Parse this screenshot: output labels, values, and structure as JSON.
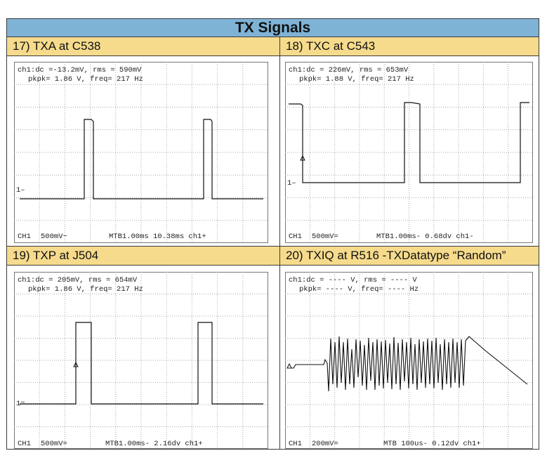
{
  "page": {
    "title": "TX Signals"
  },
  "panels": [
    {
      "heading": "17) TXA at C538",
      "readout_line1": "ch1:dc  =-13.2mV, rms =  590mV",
      "readout_line2": "pkpk= 1.86 V, freq=  217 Hz",
      "marker": "1–",
      "footer_channel": "CH1",
      "footer_scale": "500mV~",
      "footer_timebase": "MTB1.00ms 10.38ms ch1+"
    },
    {
      "heading": "18) TXC at C543",
      "readout_line1": "ch1:dc  =  226mV, rms =  653mV",
      "readout_line2": "pkpk= 1.88 V, freq=  217 Hz",
      "marker": "1–",
      "footer_channel": "CH1",
      "footer_scale": "500mV=",
      "footer_timebase": "MTB1.00ms- 0.68dv ch1-"
    },
    {
      "heading": "19) TXP at J504",
      "readout_line1": "ch1:dc  =  205mV, rms =  654mV",
      "readout_line2": "pkpk= 1.86 V, freq=  217 Hz",
      "marker": "1=",
      "footer_channel": "CH1",
      "footer_scale": "500mV=",
      "footer_timebase": "MTB1.00ms- 2.16dv ch1+"
    },
    {
      "heading": "20) TXIQ at R516 -TXDatatype “Random”",
      "readout_line1": "ch1:dc  = ---- V, rms = ---- V",
      "readout_line2": "pkpk= ---- V, freq= ---- Hz",
      "marker": "",
      "footer_channel": "CH1",
      "footer_scale": "200mV=",
      "footer_timebase": "MTB 100us- 0.12dv ch1+"
    }
  ],
  "colors": {
    "title_bg": "#7fb3d6",
    "heading_bg": "#f6db8c",
    "grid": "#a9a9a9",
    "trace": "#111111"
  }
}
